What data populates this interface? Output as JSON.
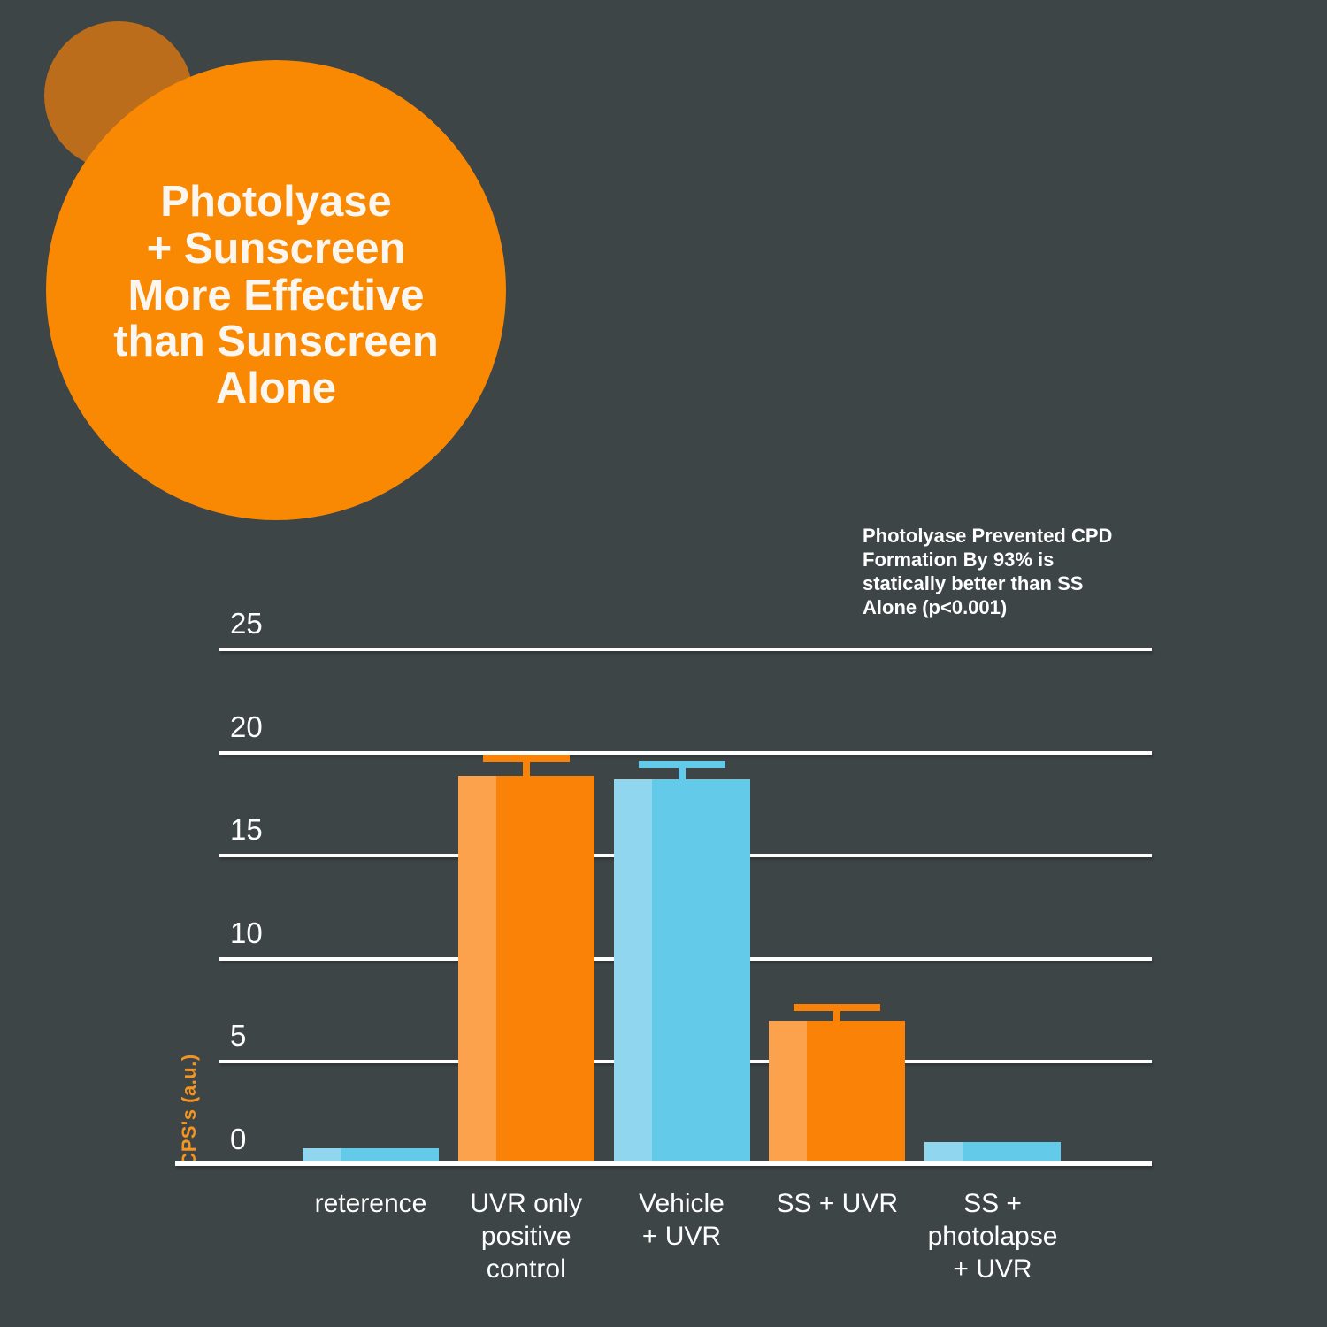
{
  "page": {
    "background_color": "#3D4547"
  },
  "title_circle": {
    "text": "Photolyase\n+ Sunscreen\nMore Effective\nthan Sunscreen\nAlone",
    "circle_color": "#F98803",
    "back_circle_color": "#BC6D1C",
    "text_color": "#FBF7F0"
  },
  "annotation": {
    "text": "Photolyase Prevented CPD\nFormation By 93% is\nstatically better than SS\nAlone (p<0.001)",
    "color": "#FFFFFF"
  },
  "chart_data": {
    "type": "bar",
    "title": "",
    "xlabel": "",
    "ylabel": "CPS's (a.u.)",
    "ylim": [
      0,
      25
    ],
    "yticks": [
      0,
      5,
      10,
      15,
      20,
      25
    ],
    "legend": "none",
    "grid": "horizontal white gridlines behind bars",
    "categories": [
      "reterence",
      "UVR only\npositive\ncontrol",
      "Vehicle\n+ UVR",
      "SS + UVR",
      "SS +\nphotolapse\n+ UVR"
    ],
    "values": [
      0.75,
      18.8,
      18.6,
      6.9,
      1.05
    ],
    "error_plus": [
      0,
      1.0,
      0.9,
      0.8,
      0
    ],
    "bar_colors": [
      "blue",
      "orange",
      "blue",
      "orange",
      "blue"
    ],
    "palette": {
      "orange": "#FA8207",
      "orange_light": "#FCA14C",
      "blue": "#63CBE9",
      "blue_light": "#90D6EF"
    },
    "axis_color": "#FFFFFF",
    "tick_label_color": "#FFFFFF",
    "ylabel_color": "#F7941E"
  }
}
